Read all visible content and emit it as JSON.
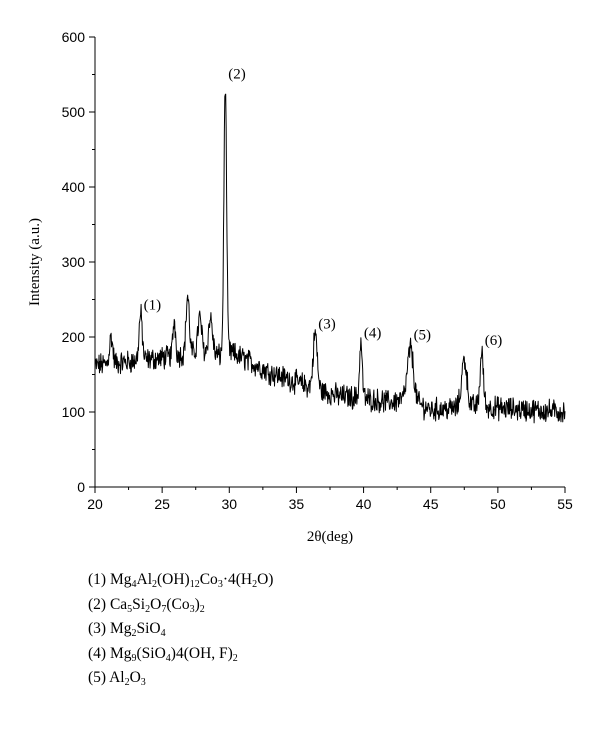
{
  "chart_data": {
    "type": "line",
    "title": "",
    "xlabel": "2θ(deg)",
    "ylabel": "Intensity (a.u.)",
    "xlim": [
      20,
      55
    ],
    "ylim": [
      0,
      600
    ],
    "x_ticks": [
      "20",
      "25",
      "30",
      "35",
      "40",
      "45",
      "50",
      "55"
    ],
    "y_ticks": [
      "0",
      "100",
      "200",
      "300",
      "400",
      "500",
      "600"
    ],
    "grid": false,
    "series_color": "#000000",
    "background": [
      [
        20,
        162
      ],
      [
        23,
        168
      ],
      [
        25,
        172
      ],
      [
        27,
        178
      ],
      [
        28.5,
        178
      ],
      [
        29.3,
        175
      ],
      [
        30,
        180
      ],
      [
        31,
        172
      ],
      [
        33,
        153
      ],
      [
        35,
        140
      ],
      [
        36.5,
        130
      ],
      [
        38,
        122
      ],
      [
        40,
        118
      ],
      [
        42,
        113
      ],
      [
        43.2,
        118
      ],
      [
        45,
        103
      ],
      [
        47,
        105
      ],
      [
        48.5,
        108
      ],
      [
        50,
        105
      ],
      [
        52,
        103
      ],
      [
        55,
        100
      ]
    ],
    "peaks": [
      {
        "x": 21.2,
        "y": 200,
        "width": 0.12
      },
      {
        "x": 23.4,
        "y": 230,
        "width": 0.12
      },
      {
        "x": 25.9,
        "y": 222,
        "width": 0.1
      },
      {
        "x": 26.9,
        "y": 255,
        "width": 0.12
      },
      {
        "x": 27.8,
        "y": 225,
        "width": 0.15
      },
      {
        "x": 28.6,
        "y": 225,
        "width": 0.15
      },
      {
        "x": 29.7,
        "y": 538,
        "width": 0.1
      },
      {
        "x": 36.4,
        "y": 205,
        "width": 0.15
      },
      {
        "x": 39.8,
        "y": 193,
        "width": 0.1
      },
      {
        "x": 43.5,
        "y": 185,
        "width": 0.22
      },
      {
        "x": 47.5,
        "y": 170,
        "width": 0.2
      },
      {
        "x": 48.8,
        "y": 180,
        "width": 0.12
      }
    ],
    "noise_amplitude": 13,
    "points_count": 1050,
    "annotations": [
      {
        "label": "(1)",
        "x": 23.4,
        "y": 230
      },
      {
        "label": "(2)",
        "x": 29.7,
        "y": 538
      },
      {
        "label": "(3)",
        "x": 36.4,
        "y": 205
      },
      {
        "label": "(4)",
        "x": 39.8,
        "y": 193
      },
      {
        "label": "(5)",
        "x": 43.5,
        "y": 190
      },
      {
        "label": "(6)",
        "x": 48.8,
        "y": 183
      }
    ]
  },
  "legend": [
    {
      "number": "(1)",
      "formula": "Mg<sub>4</sub>Al<sub>2</sub>(OH)<sub>12</sub>Co<sub>3</sub>·4(H<sub>2</sub>O)"
    },
    {
      "number": "(2)",
      "formula": "Ca<sub>5</sub>Si<sub>2</sub>O<sub>7</sub>(Co<sub>3</sub>)<sub>2</sub>"
    },
    {
      "number": "(3)",
      "formula": "Mg<sub>2</sub>SiO<sub>4</sub>"
    },
    {
      "number": "(4)",
      "formula": "Mg<sub>9</sub>(SiO<sub>4</sub>)4(OH, F)<sub>2</sub>"
    },
    {
      "number": "(5)",
      "formula": "Al<sub>2</sub>O<sub>3</sub>"
    }
  ]
}
